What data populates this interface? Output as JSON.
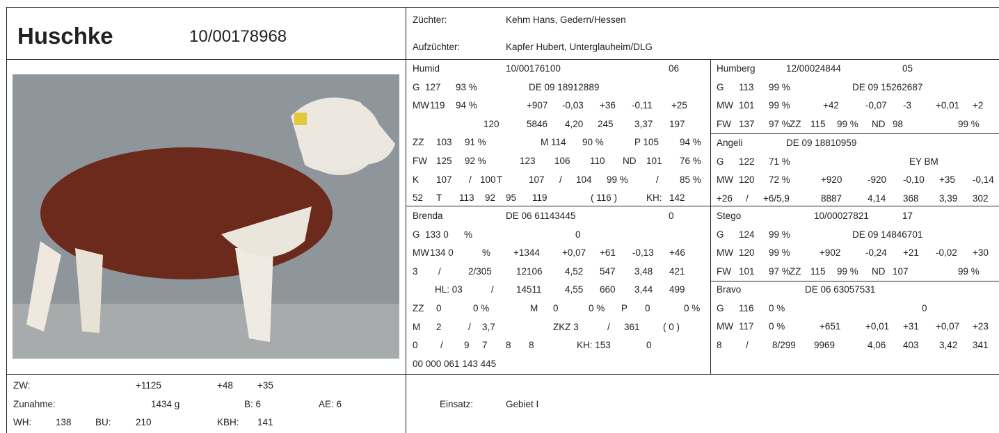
{
  "header": {
    "name": "Huschke",
    "id": "10/00178968",
    "breeder_label": "Züchter:",
    "breeder": "Kehm Hans, Gedern/Hessen",
    "rearer_label": "Aufzüchter:",
    "rearer": "Kapfer Hubert, Unterglauheim/DLG"
  },
  "blocks": [
    {
      "lines": [
        [
          "Humid",
          "10/00176100",
          "06"
        ],
        [
          "G",
          "127",
          "93 %",
          "DE 09 18912889"
        ],
        [
          "MW",
          "119",
          "94 %",
          "+907",
          "-0,03",
          "+36",
          "-0,11",
          "+25"
        ],
        [
          "120",
          "5846",
          "4,20",
          "245",
          "3,37",
          "197"
        ],
        [
          "ZZ",
          "103",
          "91 %",
          "M 114",
          "90 %",
          "P 105",
          "94 %"
        ],
        [
          "FW",
          "125",
          "92 %",
          "123",
          "106",
          "110",
          "ND",
          "101",
          "76 %"
        ],
        [
          "K",
          "107",
          "/",
          "100",
          "T",
          "107",
          "/",
          "104",
          "99 %",
          "/",
          "85 %"
        ],
        [
          "52",
          "T",
          "113",
          "92",
          "95",
          "119",
          "( 116 )",
          "KH:",
          "142"
        ]
      ]
    },
    {
      "lines": [
        [
          "Humberg",
          "12/00024844",
          "05"
        ],
        [
          "G",
          "113",
          "99 %",
          "DE 09 15262687"
        ],
        [
          "MW",
          "101",
          "99 %",
          "+42",
          "-0,07",
          "-3",
          "+0,01",
          "+2"
        ],
        [
          "FW",
          "137",
          "97 %",
          "ZZ",
          "115",
          "99 %",
          "ND",
          "98",
          "99 %"
        ]
      ]
    },
    {
      "lines": [
        [
          "Angeli",
          "DE 09 18810959"
        ],
        [
          "G",
          "122",
          "71 %",
          "EY BM"
        ],
        [
          "MW",
          "120",
          "72 %",
          "+920",
          "-920",
          "-0,10",
          "+35",
          "-0,14"
        ],
        [
          "+26",
          "/",
          "+6/5,9",
          "8887",
          "4,14",
          "368",
          "3,39",
          "302"
        ]
      ]
    },
    {
      "lines": [
        [
          "Brenda",
          "DE 06 61143445",
          "0"
        ],
        [
          "G",
          "133 0",
          "%",
          "0"
        ],
        [
          "MW",
          "134 0",
          "%",
          "+1344",
          "+0,07",
          "+61",
          "-0,13",
          "+46"
        ],
        [
          "3",
          "/",
          "2/305",
          "12106",
          "4,52",
          "547",
          "3,48",
          "421"
        ],
        [
          "HL: 03",
          "/",
          "14511",
          "4,55",
          "660",
          "3,44",
          "499"
        ],
        [
          "ZZ",
          "0",
          "0 %",
          "M",
          "0",
          "0 %",
          "P",
          "0",
          "0 %"
        ],
        [
          "M",
          "2",
          "/",
          "3,7",
          "ZKZ 3",
          "/",
          "361",
          "( 0 )"
        ],
        [
          "0",
          "/",
          "9",
          "7",
          "8",
          "8",
          "KH: 153",
          "0"
        ],
        [
          "00 000 061 143 445"
        ]
      ]
    },
    {
      "lines": [
        [
          "Stego",
          "10/00027821",
          "17"
        ],
        [
          "G",
          "124",
          "99 %",
          "DE 09 14846701"
        ],
        [
          "MW",
          "120",
          "99 %",
          "+902",
          "-0,24",
          "+21",
          "-0,02",
          "+30"
        ],
        [
          "FW",
          "101",
          "97 %",
          "ZZ",
          "115",
          "99 %",
          "ND",
          "107",
          "99 %"
        ]
      ]
    },
    {
      "lines": [
        [
          "Bravo",
          "DE 06 63057531"
        ],
        [
          "G",
          "116",
          "0 %",
          "0"
        ],
        [
          "MW",
          "117",
          "0 %",
          "+651",
          "+0,01",
          "+31",
          "+0,07",
          "+23"
        ],
        [
          "8",
          "/",
          "8/299",
          "9969",
          "4,06",
          "403",
          "3,42",
          "341"
        ]
      ]
    },
    {
      "lines": [
        [
          "ZW:",
          "+1125",
          "+48",
          "+35"
        ],
        [
          "Zunahme:",
          "1434 g",
          "B: 6",
          "AE: 6"
        ],
        [
          "WH:",
          "138",
          "BU:",
          "210",
          "KBH:",
          "141"
        ]
      ]
    },
    {
      "lines": [
        [
          "Einsatz:",
          "Gebiet I"
        ]
      ]
    }
  ]
}
